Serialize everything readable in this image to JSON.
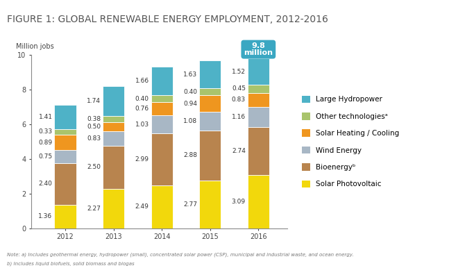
{
  "chart_data": {
    "type": "bar",
    "title": "FIGURE 1: GLOBAL RENEWABLE ENERGY EMPLOYMENT, 2012-2016",
    "y_label": "Million jobs",
    "categories": [
      "2012",
      "2013",
      "2014",
      "2015",
      "2016"
    ],
    "stacked": true,
    "data_labels": true,
    "legend": "right",
    "grid": false,
    "ylim": [
      0,
      10
    ],
    "yticks": [
      0,
      2,
      4,
      6,
      8,
      10
    ],
    "series": [
      {
        "name": "Solar Photovoltaic",
        "color": "#f2d80c",
        "values": [
          1.36,
          2.27,
          2.49,
          2.77,
          3.09
        ],
        "value_labels": [
          "1.36",
          "2.27",
          "2.49",
          "2.77",
          "3.09"
        ]
      },
      {
        "name": "Bioenergyᵇ",
        "color": "#b8844e",
        "values": [
          2.4,
          2.5,
          2.99,
          2.88,
          2.74
        ],
        "value_labels": [
          "2.40",
          "2.50",
          "2.99",
          "2.88",
          "2.74"
        ]
      },
      {
        "name": "Wind Energy",
        "color": "#a8b7c5",
        "values": [
          0.75,
          0.83,
          1.03,
          1.08,
          1.16
        ],
        "value_labels": [
          "0.75",
          "0.83",
          "1.03",
          "1.08",
          "1.16"
        ]
      },
      {
        "name": "Solar Heating / Cooling",
        "color": "#ef961f",
        "values": [
          0.89,
          0.5,
          0.76,
          0.94,
          0.83
        ],
        "value_labels": [
          "0.89",
          "0.50",
          "0.76",
          "0.94",
          "0.83"
        ]
      },
      {
        "name": "Other technologiesᵃ",
        "color": "#a9c46c",
        "values": [
          0.33,
          0.38,
          0.4,
          0.4,
          0.45
        ],
        "value_labels": [
          "0.33",
          "0.38",
          "0.40",
          "0.40",
          "0.45"
        ]
      },
      {
        "name": "Large Hydropower",
        "color": "#4eb2c7",
        "values": [
          1.41,
          1.74,
          1.66,
          1.63,
          1.52
        ],
        "value_labels": [
          "1.41",
          "1.74",
          "1.66",
          "1.63",
          "1.52"
        ]
      }
    ],
    "annotations": [
      {
        "text": "9.8\nmillion",
        "x": "2016"
      }
    ],
    "notes": [
      "Note: a) Includes geothermal energy, hydropower (small), concentrated solar power (CSP), municipal and industrial waste, and ocean energy.",
      "b) Includes liquid biofuels, solid biomass and biogas"
    ]
  }
}
